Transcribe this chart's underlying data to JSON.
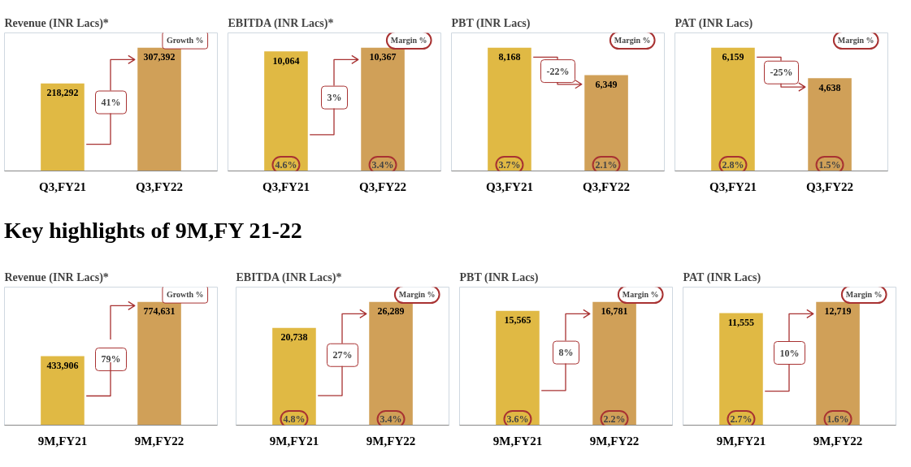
{
  "chart_data": [
    {
      "type": "bar",
      "title": "Revenue (INR Lacs)*",
      "categories": [
        "Q3,FY21",
        "Q3,FY22"
      ],
      "values": [
        218292,
        307392
      ],
      "colors": [
        "#e0b944",
        "#d0a058"
      ],
      "value_labels": [
        "218,292",
        "307,392"
      ],
      "annotations": [
        "Growth %",
        "41%"
      ]
    },
    {
      "type": "bar",
      "title": "EBITDA (INR Lacs)*",
      "categories": [
        "Q3,FY21",
        "Q3,FY22"
      ],
      "values": [
        10064,
        10367
      ],
      "colors": [
        "#e0b944",
        "#d0a058"
      ],
      "value_labels": [
        "10,064",
        "10,367"
      ],
      "annotations": [
        "Margin %",
        "3%",
        "4.6%",
        "3.4%"
      ]
    },
    {
      "type": "bar",
      "title": "PBT (INR Lacs)",
      "categories": [
        "Q3,FY21",
        "Q3,FY22"
      ],
      "values": [
        8168,
        6349
      ],
      "colors": [
        "#e0b944",
        "#d0a058"
      ],
      "value_labels": [
        "8,168",
        "6,349"
      ],
      "annotations": [
        "Margin %",
        "-22%",
        "3.7%",
        "2.1%"
      ]
    },
    {
      "type": "bar",
      "title": "PAT (INR Lacs)",
      "categories": [
        "Q3,FY21",
        "Q3,FY22"
      ],
      "values": [
        6159,
        4638
      ],
      "colors": [
        "#e0b944",
        "#d0a058"
      ],
      "value_labels": [
        "6,159",
        "4,638"
      ],
      "annotations": [
        "Margin %",
        "-25%",
        "2.8%",
        "1.5%"
      ]
    },
    {
      "type": "bar",
      "title": "Revenue (INR Lacs)*",
      "subtitle": "Key highlights of 9M,FY 21-22",
      "categories": [
        "9M,FY21",
        "9M,FY22"
      ],
      "values": [
        433906,
        774631
      ],
      "colors": [
        "#e0b944",
        "#d0a058"
      ],
      "value_labels": [
        "433,906",
        "774,631"
      ],
      "annotations": [
        "Growth %",
        "79%"
      ]
    },
    {
      "type": "bar",
      "title": "EBITDA (INR Lacs)*",
      "categories": [
        "9M,FY21",
        "9M,FY22"
      ],
      "values": [
        20738,
        26289
      ],
      "colors": [
        "#e0b944",
        "#d0a058"
      ],
      "value_labels": [
        "20,738",
        "26,289"
      ],
      "annotations": [
        "Margin %",
        "27%",
        "4.8%",
        "3.4%"
      ]
    },
    {
      "type": "bar",
      "title": "PBT (INR Lacs)",
      "categories": [
        "9M,FY21",
        "9M,FY22"
      ],
      "values": [
        15565,
        16781
      ],
      "colors": [
        "#e0b944",
        "#d0a058"
      ],
      "value_labels": [
        "15,565",
        "16,781"
      ],
      "annotations": [
        "Margin %",
        "8%",
        "3.6%",
        "2.2%"
      ]
    },
    {
      "type": "bar",
      "title": "PAT (INR Lacs)",
      "categories": [
        "9M,FY21",
        "9M,FY22"
      ],
      "values": [
        11555,
        12719
      ],
      "colors": [
        "#e0b944",
        "#d0a058"
      ],
      "value_labels": [
        "11,555",
        "12,719"
      ],
      "annotations": [
        "Margin %",
        "10%",
        "2.7%",
        "1.6%"
      ]
    }
  ]
}
